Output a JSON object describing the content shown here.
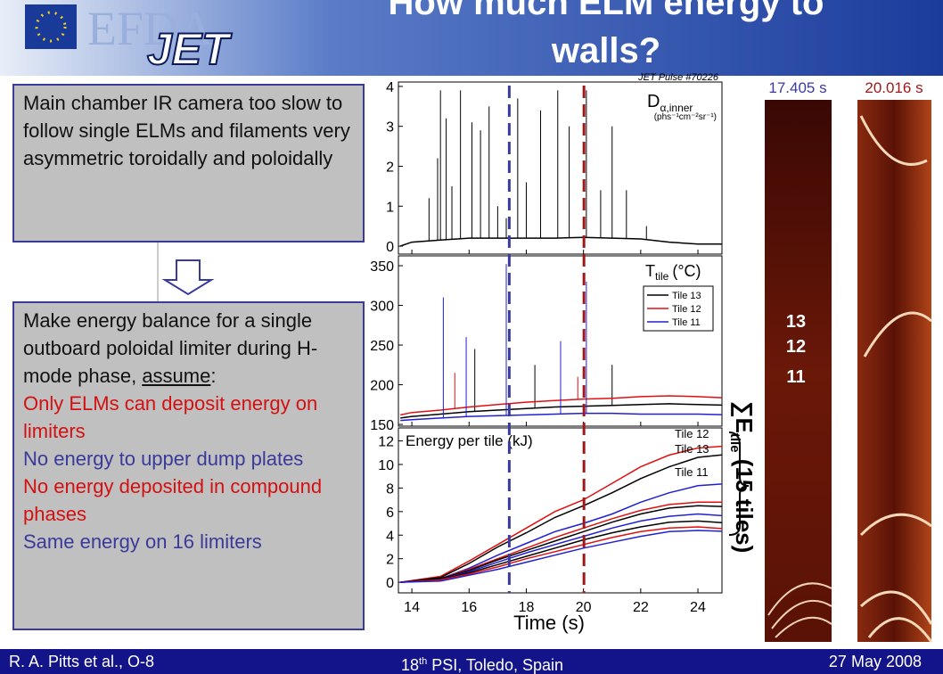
{
  "header": {
    "title": "How much ELM energy to walls?",
    "logo_top": "EFDA",
    "logo_bottom": "JET"
  },
  "box1": {
    "text": "Main chamber IR camera too slow to follow single ELMs and filaments very asymmetric toroidally and poloidally"
  },
  "box2": {
    "intro": "Make energy balance for a single outboard poloidal limiter during H-mode phase, ",
    "emphasis": "assume",
    "tail": ":",
    "assumptions": [
      {
        "text": "Only ELMs can deposit energy on limiters",
        "color": "#d41010"
      },
      {
        "text": "No energy to upper dump plates",
        "color": "#3a3a9a"
      },
      {
        "text": "No energy deposited in compound phases",
        "color": "#d41010"
      },
      {
        "text": "Same energy on 16 limiters",
        "color": "#3a3a9a"
      }
    ]
  },
  "chart_data": [
    {
      "type": "line",
      "pulse": "JET Pulse #70226",
      "symbol": "D",
      "subscript": "α,inner",
      "units": "(phs⁻¹cm⁻²sr⁻¹)",
      "xlim": [
        13.53,
        24.84
      ],
      "ylim": [
        -0.2,
        4.11
      ],
      "yticks": [
        0,
        1,
        2,
        3,
        4
      ],
      "x": [
        13.6,
        14,
        15,
        16,
        17,
        18,
        19,
        20,
        21,
        22,
        23,
        24,
        25.2
      ],
      "series": [
        {
          "color": "#000000",
          "values": [
            0.0,
            0.1,
            0.15,
            0.2,
            0.2,
            0.2,
            0.2,
            0.22,
            0.2,
            0.18,
            0.1,
            0.05,
            0.05
          ],
          "spikes": {
            "x": [
              14.6,
              14.9,
              15.0,
              15.2,
              15.4,
              15.7,
              16.1,
              16.4,
              16.7,
              17.0,
              17.3,
              17.7,
              18.0,
              18.5,
              19.1,
              19.5,
              20.1,
              20.6,
              21.0,
              21.5,
              22.2
            ],
            "values": [
              1.2,
              2.2,
              3.9,
              3.2,
              1.5,
              3.9,
              3.1,
              2.9,
              3.5,
              1.0,
              0.7,
              3.7,
              1.6,
              3.4,
              3.9,
              3.0,
              3.9,
              1.4,
              3.0,
              1.4,
              0.5
            ]
          }
        }
      ]
    },
    {
      "type": "line",
      "symbol": "T",
      "subscript": "tile",
      "units": "(°C)",
      "xlim": [
        13.53,
        24.84
      ],
      "ylim": [
        147.8,
        362.4
      ],
      "yticks": [
        150,
        200,
        250,
        300,
        350
      ],
      "x": [
        13.6,
        14,
        15,
        16,
        17,
        18,
        19,
        20,
        21,
        22,
        23,
        24,
        25.2
      ],
      "series": [
        {
          "name": "Tile 13",
          "color": "#000000",
          "values": [
            158,
            160,
            163,
            166,
            168,
            170,
            172,
            173,
            174,
            175,
            176,
            175,
            174
          ],
          "spikes": {
            "x": [
              16.2,
              18.3,
              21.0
            ],
            "values": [
              245,
              225,
              225
            ]
          }
        },
        {
          "name": "Tile 12",
          "color": "#e01010",
          "values": [
            162,
            165,
            168,
            172,
            175,
            178,
            180,
            182,
            183,
            185,
            186,
            185,
            183
          ],
          "spikes": {
            "x": [
              15.5,
              19.8
            ],
            "values": [
              215,
              210
            ]
          }
        },
        {
          "name": "Tile 11",
          "color": "#2020d0",
          "values": [
            155,
            156,
            158,
            160,
            161,
            162,
            163,
            164,
            164,
            163,
            163,
            163,
            162
          ],
          "spikes": {
            "x": [
              15.1,
              15.9,
              17.3,
              19.2,
              20.1
            ],
            "values": [
              310,
              260,
              352,
              255,
              330
            ]
          }
        }
      ]
    },
    {
      "type": "line",
      "title": "Energy per tile (kJ)",
      "x_label": "Time (s)",
      "xlim": [
        13.53,
        24.84
      ],
      "ylim": [
        -0.9,
        13.1
      ],
      "yticks": [
        0,
        2,
        4,
        6,
        8,
        10,
        12
      ],
      "xticks": [
        14,
        16,
        18,
        20,
        22,
        24
      ],
      "x": [
        13.6,
        15,
        16,
        17,
        18,
        19,
        20,
        21,
        22,
        23,
        24,
        25.2
      ],
      "series": [
        {
          "name": "Tile 12",
          "color": "#e01010",
          "values": [
            0,
            0.5,
            1.8,
            3.2,
            4.6,
            6,
            7,
            8.4,
            9.8,
            10.8,
            11.4,
            11.6
          ]
        },
        {
          "name": "Tile 13",
          "color": "#000000",
          "values": [
            0,
            0.4,
            1.6,
            3,
            4.2,
            5.5,
            6.5,
            7.6,
            8.8,
            9.8,
            10.6,
            10.9
          ]
        },
        {
          "name": "Tile 11",
          "color": "#2020d0",
          "values": [
            0,
            0.3,
            1.2,
            2.3,
            3.3,
            4.3,
            5,
            5.8,
            6.8,
            7.6,
            8.2,
            8.4
          ]
        },
        {
          "color": "#e01010",
          "values": [
            0,
            0.3,
            1.1,
            2.0,
            2.9,
            3.8,
            4.6,
            5.4,
            6.1,
            6.6,
            6.8,
            6.8
          ]
        },
        {
          "color": "#000000",
          "values": [
            0,
            0.3,
            1.0,
            1.9,
            2.7,
            3.5,
            4.3,
            5.1,
            5.8,
            6.3,
            6.5,
            6.4
          ]
        },
        {
          "color": "#2020d0",
          "values": [
            0,
            0.2,
            0.9,
            1.7,
            2.5,
            3.2,
            3.9,
            4.6,
            5.2,
            5.6,
            5.8,
            5.6
          ]
        },
        {
          "color": "#000000",
          "values": [
            0,
            0.2,
            0.8,
            1.5,
            2.2,
            2.9,
            3.6,
            4.2,
            4.7,
            5.1,
            5.2,
            5.0
          ]
        },
        {
          "color": "#e01010",
          "values": [
            0,
            0.2,
            0.7,
            1.3,
            2.0,
            2.6,
            3.2,
            3.8,
            4.3,
            4.6,
            4.7,
            4.5
          ]
        },
        {
          "color": "#2020d0",
          "values": [
            0,
            0.1,
            0.6,
            1.1,
            1.7,
            2.3,
            2.9,
            3.4,
            3.9,
            4.3,
            4.4,
            4.3
          ]
        }
      ]
    }
  ],
  "time_markers": [
    {
      "value": 17.405,
      "label": "17.405 s",
      "color": "#3a3aa0"
    },
    {
      "value": 20.016,
      "label": "20.016 s",
      "color": "#a01818"
    }
  ],
  "camera": {
    "tile_labels": [
      13,
      12,
      11
    ],
    "sum_symbol": "∑E",
    "sum_sub": "tile",
    "sum_rest": " (15 tiles)"
  },
  "footer": {
    "left": "R. A. Pitts et al., O-8",
    "center_num": "18",
    "center_sup": "th",
    "center_rest": " PSI, Toledo, Spain",
    "right": "27 May 2008"
  }
}
